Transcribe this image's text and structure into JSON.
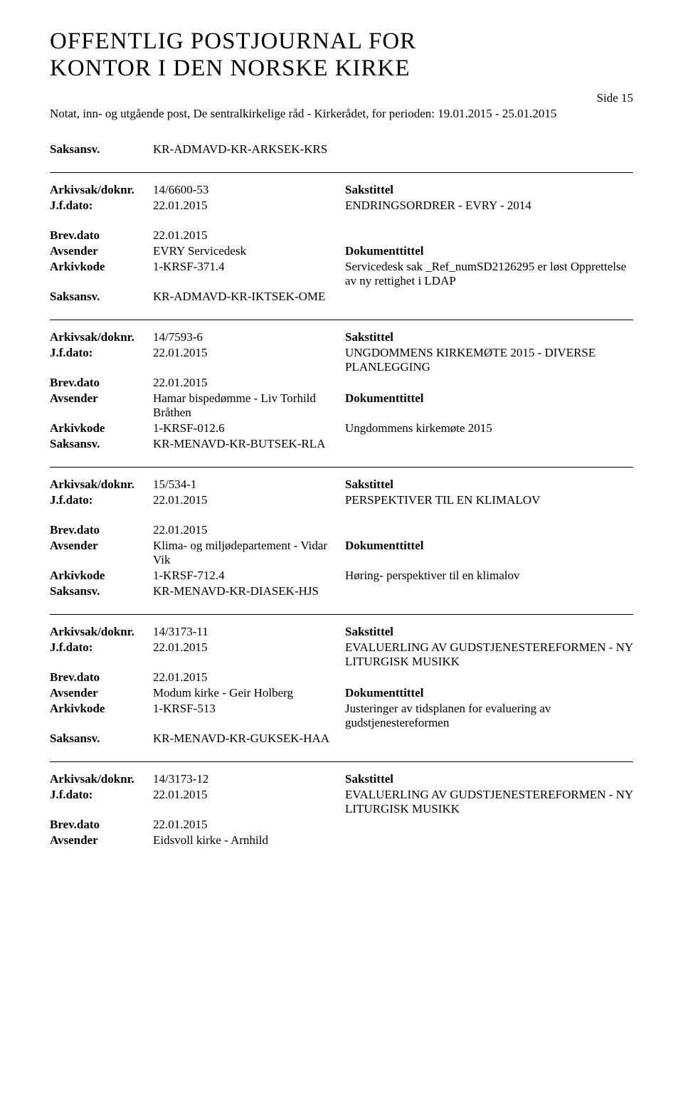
{
  "heading": {
    "title_l1": "OFFENTLIG POSTJOURNAL FOR",
    "title_l2": "KONTOR I DEN NORSKE KIRKE",
    "side": "Side 15",
    "subtitle": "Notat, inn- og utgående post, De sentralkirkelige råd - Kirkerådet, for perioden: 19.01.2015 - 25.01.2015"
  },
  "labels": {
    "saksansv": "Saksansv.",
    "arkivsak": "Arkivsak/doknr.",
    "jfdato": "J.f.dato:",
    "brevdato": "Brev.dato",
    "avsender": "Avsender",
    "arkivkode": "Arkivkode",
    "sakstittel": "Sakstittel",
    "dokumenttittel": "Dokumenttittel"
  },
  "top_saksansv": "KR-ADMAVD-KR-ARKSEK-KRS",
  "entries": [
    {
      "arkivsak": "14/6600-53",
      "jfdato": "22.01.2015",
      "sakstittel": "ENDRINGSORDRER - EVRY - 2014",
      "brevdato": "22.01.2015",
      "avsender": "EVRY Servicedesk",
      "arkivkode": "1-KRSF-371.4",
      "doktekst": "Servicedesk sak _Ref_numSD2126295 er løst Opprettelse av ny rettighet i LDAP",
      "saksansv": "KR-ADMAVD-KR-IKTSEK-OME"
    },
    {
      "arkivsak": "14/7593-6",
      "jfdato": "22.01.2015",
      "sakstittel": "UNGDOMMENS KIRKEMØTE 2015 - DIVERSE PLANLEGGING",
      "brevdato": "22.01.2015",
      "avsender": "Hamar bispedømme - Liv Torhild Bråthen",
      "arkivkode": "1-KRSF-012.6",
      "doktekst": "Ungdommens kirkemøte 2015",
      "saksansv": "KR-MENAVD-KR-BUTSEK-RLA"
    },
    {
      "arkivsak": "15/534-1",
      "jfdato": "22.01.2015",
      "sakstittel": "PERSPEKTIVER TIL EN KLIMALOV",
      "brevdato": "22.01.2015",
      "avsender": "Klima- og miljødepartement - Vidar Vik",
      "arkivkode": "1-KRSF-712.4",
      "doktekst": "Høring- perspektiver til en klimalov",
      "saksansv": "KR-MENAVD-KR-DIASEK-HJS"
    },
    {
      "arkivsak": "14/3173-11",
      "jfdato": "22.01.2015",
      "sakstittel": "EVALUERLING AV GUDSTJENESTEREFORMEN - NY LITURGISK MUSIKK",
      "brevdato": "22.01.2015",
      "avsender": "Modum kirke - Geir Holberg",
      "arkivkode": "1-KRSF-513",
      "doktekst": "Justeringer av tidsplanen for evaluering av gudstjenestereformen",
      "saksansv": "KR-MENAVD-KR-GUKSEK-HAA"
    },
    {
      "arkivsak": "14/3173-12",
      "jfdato": "22.01.2015",
      "sakstittel": "EVALUERLING AV GUDSTJENESTEREFORMEN - NY LITURGISK MUSIKK",
      "brevdato": "22.01.2015",
      "avsender": "Eidsvoll kirke - Arnhild"
    }
  ]
}
